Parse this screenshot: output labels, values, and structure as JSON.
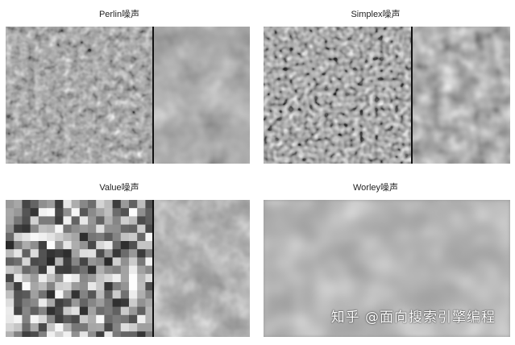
{
  "panels": {
    "perlin": {
      "title": "Perlin噪声"
    },
    "simplex": {
      "title": "Simplex噪声"
    },
    "value": {
      "title": "Value噪声"
    },
    "worley": {
      "title": "Worley噪声"
    }
  },
  "watermark": "知乎 @面向搜索引擎编程"
}
